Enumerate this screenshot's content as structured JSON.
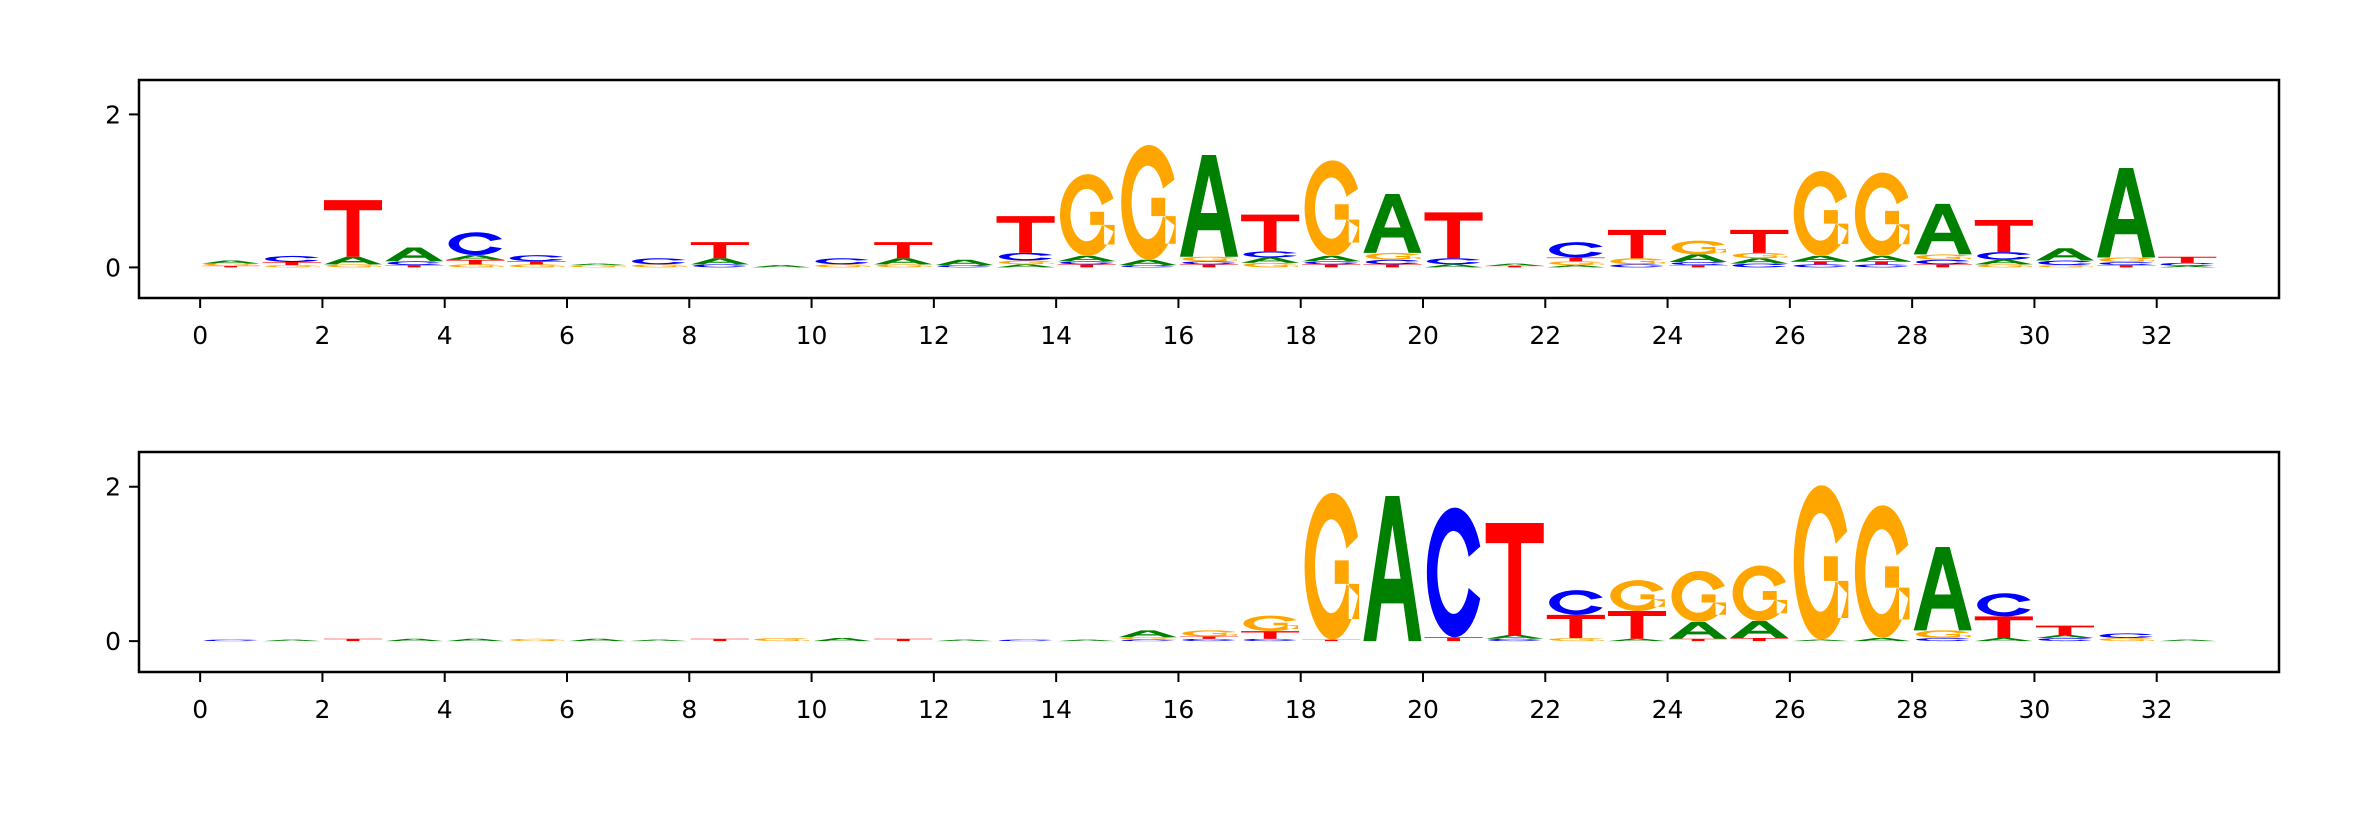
{
  "colors": {
    "A": "#008000",
    "C": "#0000ff",
    "G": "#ffa500",
    "T": "#ff0000"
  },
  "chart_data": [
    {
      "type": "sequence-logo",
      "xlim": [
        -1,
        34
      ],
      "ylim": [
        -0.4,
        2.45
      ],
      "xticks": [
        "0",
        "2",
        "4",
        "6",
        "8",
        "10",
        "12",
        "14",
        "16",
        "18",
        "20",
        "22",
        "24",
        "26",
        "28",
        "30",
        "32"
      ],
      "yticks": [
        "0",
        "2"
      ],
      "stacks": [
        [
          [
            "T",
            0.02
          ],
          [
            "G",
            0.03
          ],
          [
            "A",
            0.04
          ]
        ],
        [
          [
            "G",
            0.03
          ],
          [
            "T",
            0.04
          ],
          [
            "C",
            0.08
          ]
        ],
        [
          [
            "G",
            0.04
          ],
          [
            "A",
            0.1
          ],
          [
            "T",
            0.74
          ]
        ],
        [
          [
            "T",
            0.03
          ],
          [
            "C",
            0.05
          ],
          [
            "A",
            0.18
          ]
        ],
        [
          [
            "G",
            0.04
          ],
          [
            "T",
            0.06
          ],
          [
            "A",
            0.06
          ],
          [
            "C",
            0.3
          ]
        ],
        [
          [
            "G",
            0.04
          ],
          [
            "T",
            0.04
          ],
          [
            "C",
            0.08
          ]
        ],
        [
          [
            "G",
            0.03
          ],
          [
            "A",
            0.02
          ]
        ],
        [
          [
            "G",
            0.04
          ],
          [
            "C",
            0.08
          ]
        ],
        [
          [
            "C",
            0.04
          ],
          [
            "A",
            0.08
          ],
          [
            "T",
            0.21
          ]
        ],
        [
          [
            "A",
            0.03
          ]
        ],
        [
          [
            "G",
            0.04
          ],
          [
            "C",
            0.08
          ]
        ],
        [
          [
            "G",
            0.04
          ],
          [
            "A",
            0.08
          ],
          [
            "T",
            0.21
          ]
        ],
        [
          [
            "C",
            0.03
          ],
          [
            "A",
            0.07
          ]
        ],
        [
          [
            "A",
            0.04
          ],
          [
            "G",
            0.05
          ],
          [
            "C",
            0.1
          ],
          [
            "T",
            0.48
          ]
        ],
        [
          [
            "T",
            0.04
          ],
          [
            "C",
            0.04
          ],
          [
            "A",
            0.07
          ],
          [
            "G",
            1.07
          ]
        ],
        [
          [
            "C",
            0.03
          ],
          [
            "A",
            0.07
          ],
          [
            "G",
            1.5
          ]
        ],
        [
          [
            "T",
            0.04
          ],
          [
            "C",
            0.04
          ],
          [
            "G",
            0.06
          ],
          [
            "A",
            1.33
          ]
        ],
        [
          [
            "G",
            0.06
          ],
          [
            "A",
            0.07
          ],
          [
            "C",
            0.08
          ],
          [
            "T",
            0.48
          ]
        ],
        [
          [
            "T",
            0.04
          ],
          [
            "C",
            0.04
          ],
          [
            "A",
            0.07
          ],
          [
            "G",
            1.25
          ]
        ],
        [
          [
            "T",
            0.04
          ],
          [
            "C",
            0.06
          ],
          [
            "G",
            0.09
          ],
          [
            "A",
            0.77
          ]
        ],
        [
          [
            "A",
            0.04
          ],
          [
            "C",
            0.08
          ],
          [
            "T",
            0.6
          ]
        ],
        [
          [
            "T",
            0.02
          ],
          [
            "A",
            0.03
          ]
        ],
        [
          [
            "A",
            0.03
          ],
          [
            "G",
            0.05
          ],
          [
            "T",
            0.05
          ],
          [
            "C",
            0.2
          ]
        ],
        [
          [
            "C",
            0.04
          ],
          [
            "G",
            0.08
          ],
          [
            "T",
            0.37
          ]
        ],
        [
          [
            "T",
            0.03
          ],
          [
            "C",
            0.04
          ],
          [
            "A",
            0.1
          ],
          [
            "G",
            0.18
          ]
        ],
        [
          [
            "C",
            0.05
          ],
          [
            "A",
            0.07
          ],
          [
            "G",
            0.07
          ],
          [
            "T",
            0.3
          ]
        ],
        [
          [
            "C",
            0.04
          ],
          [
            "T",
            0.04
          ],
          [
            "A",
            0.07
          ],
          [
            "G",
            1.11
          ]
        ],
        [
          [
            "C",
            0.04
          ],
          [
            "T",
            0.04
          ],
          [
            "A",
            0.07
          ],
          [
            "G",
            1.09
          ]
        ],
        [
          [
            "T",
            0.04
          ],
          [
            "C",
            0.06
          ],
          [
            "G",
            0.07
          ],
          [
            "A",
            0.66
          ]
        ],
        [
          [
            "G",
            0.04
          ],
          [
            "A",
            0.06
          ],
          [
            "C",
            0.1
          ],
          [
            "T",
            0.42
          ]
        ],
        [
          [
            "G",
            0.03
          ],
          [
            "C",
            0.06
          ],
          [
            "A",
            0.16
          ]
        ],
        [
          [
            "T",
            0.03
          ],
          [
            "C",
            0.04
          ],
          [
            "G",
            0.06
          ],
          [
            "A",
            1.17
          ]
        ],
        [
          [
            "A",
            0.02
          ],
          [
            "C",
            0.04
          ],
          [
            "T",
            0.08
          ]
        ]
      ]
    },
    {
      "type": "sequence-logo",
      "xlim": [
        -1,
        34
      ],
      "ylim": [
        -0.4,
        2.45
      ],
      "xticks": [
        "0",
        "2",
        "4",
        "6",
        "8",
        "10",
        "12",
        "14",
        "16",
        "18",
        "20",
        "22",
        "24",
        "26",
        "28",
        "30",
        "32"
      ],
      "yticks": [
        "0",
        "2"
      ],
      "stacks": [
        [
          [
            "C",
            0.02
          ]
        ],
        [
          [
            "A",
            0.02
          ]
        ],
        [
          [
            "T",
            0.03
          ]
        ],
        [
          [
            "A",
            0.03
          ]
        ],
        [
          [
            "A",
            0.03
          ]
        ],
        [
          [
            "G",
            0.03
          ]
        ],
        [
          [
            "A",
            0.03
          ]
        ],
        [
          [
            "A",
            0.02
          ]
        ],
        [
          [
            "T",
            0.03
          ]
        ],
        [
          [
            "G",
            0.04
          ]
        ],
        [
          [
            "A",
            0.04
          ]
        ],
        [
          [
            "T",
            0.03
          ]
        ],
        [
          [
            "A",
            0.02
          ]
        ],
        [
          [
            "C",
            0.02
          ]
        ],
        [
          [
            "A",
            0.02
          ]
        ],
        [
          [
            "C",
            0.02
          ],
          [
            "G",
            0.03
          ],
          [
            "A",
            0.09
          ]
        ],
        [
          [
            "C",
            0.03
          ],
          [
            "T",
            0.03
          ],
          [
            "G",
            0.08
          ]
        ],
        [
          [
            "C",
            0.03
          ],
          [
            "T",
            0.1
          ],
          [
            "G",
            0.2
          ]
        ],
        [
          [
            "T",
            0.02
          ],
          [
            "G",
            1.9
          ]
        ],
        [
          [
            "A",
            1.88
          ]
        ],
        [
          [
            "T",
            0.05
          ],
          [
            "C",
            1.68
          ]
        ],
        [
          [
            "C",
            0.03
          ],
          [
            "A",
            0.05
          ],
          [
            "T",
            1.45
          ]
        ],
        [
          [
            "G",
            0.04
          ],
          [
            "T",
            0.3
          ],
          [
            "C",
            0.32
          ]
        ],
        [
          [
            "A",
            0.03
          ],
          [
            "T",
            0.36
          ],
          [
            "G",
            0.4
          ]
        ],
        [
          [
            "T",
            0.03
          ],
          [
            "A",
            0.22
          ],
          [
            "G",
            0.66
          ]
        ],
        [
          [
            "T",
            0.04
          ],
          [
            "A",
            0.22
          ],
          [
            "G",
            0.72
          ]
        ],
        [
          [
            "A",
            0.02
          ],
          [
            "G",
            2.0
          ]
        ],
        [
          [
            "A",
            0.04
          ],
          [
            "G",
            1.72
          ]
        ],
        [
          [
            "C",
            0.04
          ],
          [
            "G",
            0.1
          ],
          [
            "A",
            1.08
          ]
        ],
        [
          [
            "A",
            0.04
          ],
          [
            "T",
            0.28
          ],
          [
            "C",
            0.3
          ]
        ],
        [
          [
            "C",
            0.04
          ],
          [
            "A",
            0.04
          ],
          [
            "T",
            0.12
          ]
        ],
        [
          [
            "G",
            0.04
          ],
          [
            "C",
            0.06
          ]
        ],
        [
          [
            "A",
            0.02
          ]
        ]
      ]
    }
  ]
}
